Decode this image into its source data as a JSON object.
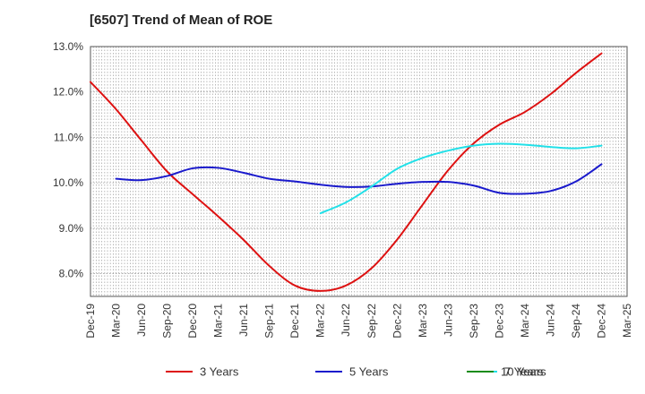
{
  "chart_data": {
    "type": "line",
    "title": "[6507]  Trend of Mean of ROE",
    "xlabel": "",
    "ylabel": "",
    "categories": [
      "Dec-19",
      "Mar-20",
      "Jun-20",
      "Sep-20",
      "Dec-20",
      "Mar-21",
      "Jun-21",
      "Sep-21",
      "Dec-21",
      "Mar-22",
      "Jun-22",
      "Sep-22",
      "Dec-22",
      "Mar-23",
      "Jun-23",
      "Sep-23",
      "Dec-23",
      "Mar-24",
      "Jun-24",
      "Sep-24",
      "Dec-24",
      "Mar-25"
    ],
    "y_ticks": [
      "8.0%",
      "9.0%",
      "10.0%",
      "11.0%",
      "12.0%",
      "13.0%"
    ],
    "ylim": [
      7.5,
      13.0
    ],
    "grid": true,
    "legend_position": "bottom",
    "series": [
      {
        "name": "3 Years",
        "color": "#dd1111",
        "values": [
          12.22,
          11.62,
          10.93,
          10.25,
          9.75,
          9.26,
          8.74,
          8.17,
          7.74,
          7.62,
          7.74,
          8.12,
          8.75,
          9.52,
          10.28,
          10.87,
          11.28,
          11.56,
          11.95,
          12.42,
          12.85,
          null
        ]
      },
      {
        "name": "5 Years",
        "color": "#1a1acc",
        "values": [
          null,
          10.09,
          10.06,
          10.15,
          10.32,
          10.33,
          10.22,
          10.09,
          10.03,
          9.96,
          9.91,
          9.92,
          9.98,
          10.02,
          10.02,
          9.94,
          9.78,
          9.76,
          9.82,
          10.03,
          10.41,
          null
        ]
      },
      {
        "name": "7 Years",
        "color": "#22e0e8",
        "values": [
          null,
          null,
          null,
          null,
          null,
          null,
          null,
          null,
          null,
          9.33,
          9.57,
          9.92,
          10.31,
          10.55,
          10.71,
          10.82,
          10.86,
          10.84,
          10.79,
          10.76,
          10.82,
          null
        ]
      },
      {
        "name": "10 Years",
        "color": "#1a8c1a",
        "values": [
          null,
          null,
          null,
          null,
          null,
          null,
          null,
          null,
          null,
          null,
          null,
          null,
          null,
          null,
          null,
          null,
          null,
          null,
          null,
          null,
          null,
          null
        ]
      }
    ]
  }
}
